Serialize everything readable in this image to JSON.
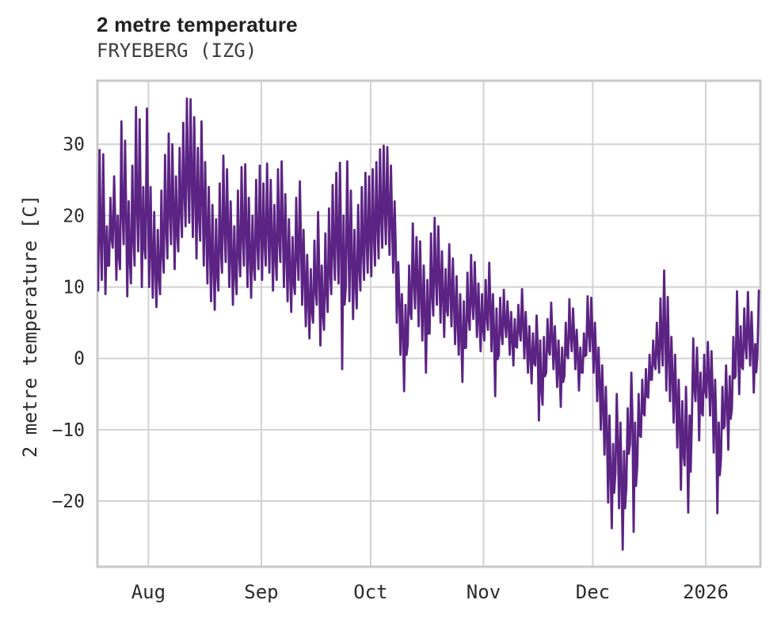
{
  "header": {
    "title": "2 metre temperature",
    "subtitle": "FRYEBERG (IZG)"
  },
  "chart_data": {
    "type": "line",
    "title": "2 metre temperature",
    "station": "FRYEBERG (IZG)",
    "ylabel": "2 metre temperature [C]",
    "xlabel": "",
    "ylim": [
      -29.2,
      38.9
    ],
    "yticks": [
      -20,
      -10,
      0,
      10,
      20,
      30
    ],
    "ytick_labels": [
      "−20",
      "−10",
      "0",
      "10",
      "20",
      "30"
    ],
    "grid": true,
    "legend": "none",
    "line_color": "#5B2383",
    "grid_color": "#d2d2d2",
    "border_color": "#c9c9c9",
    "tick_label_color": "#2b2b2b",
    "x_axis": {
      "unit": "days from start of record (mid-July)",
      "length_days": 182,
      "month_ticks": [
        {
          "label": "Aug",
          "day": 14
        },
        {
          "label": "Sep",
          "day": 45
        },
        {
          "label": "Oct",
          "day": 75
        },
        {
          "label": "Nov",
          "day": 106
        },
        {
          "label": "Dec",
          "day": 136
        },
        {
          "label": "2026",
          "day": 167
        }
      ]
    },
    "series": [
      {
        "name": "2 metre temperature [C]",
        "sampling": "daily minimum / maximum (diurnal cycle), values in degrees C, estimated from plot",
        "daily_min": [
          9.5,
          11,
          9,
          13,
          15.5,
          11,
          12.5,
          16,
          8.7,
          10.5,
          13,
          15,
          10,
          14,
          10,
          8.5,
          7.2,
          9,
          12,
          14,
          16,
          12.5,
          15,
          17,
          18.5,
          19,
          17,
          14,
          16.5,
          13,
          10.5,
          8,
          6.8,
          9.5,
          12,
          13.5,
          10,
          7.5,
          9,
          11.5,
          13,
          10,
          8.5,
          11,
          12.5,
          11,
          13,
          12,
          9.5,
          11,
          13.5,
          10,
          8,
          6.5,
          9,
          11,
          7.5,
          4.5,
          2.8,
          5,
          7.5,
          1.8,
          4,
          6.5,
          9,
          11,
          10.5,
          -1.5,
          10,
          8,
          5.5,
          7,
          9.5,
          11,
          12,
          11.5,
          13,
          14,
          15.5,
          16,
          14.5,
          12,
          5,
          0.5,
          -4.6,
          2,
          5.5,
          7,
          4.5,
          2.5,
          -2,
          3.5,
          6,
          7.5,
          5,
          3,
          6,
          4.5,
          2,
          0.5,
          -3.3,
          1.5,
          4,
          5.5,
          3,
          1,
          2.5,
          4,
          1,
          -5.3,
          0.5,
          2,
          3,
          0.5,
          -1,
          1.5,
          2.5,
          0,
          -2,
          -3.5,
          -1,
          -8.7,
          -6.5,
          -2,
          0.5,
          -1.5,
          -4,
          -6.8,
          -2.5,
          0,
          1,
          -1.5,
          -4.5,
          -2,
          0.5,
          1,
          -2,
          -6,
          -10,
          -13.5,
          -20.2,
          -23.8,
          -16,
          -21,
          -26.8,
          -18,
          -12,
          -24.3,
          -15,
          -11,
          -8,
          -5.5,
          -3,
          -1.5,
          -2,
          -1,
          -4.5,
          -6,
          -9,
          -12.5,
          -18.4,
          -15,
          -21.6,
          -9,
          -6,
          -11.5,
          -8,
          -5.5,
          -8,
          -13.2,
          -21.7,
          -14,
          -9.5,
          -12.8,
          -7,
          -2.5,
          -5,
          -1.5,
          0,
          -1,
          -4.8,
          0.5
        ],
        "daily_max": [
          29.2,
          28.6,
          18.5,
          22.5,
          25.5,
          20,
          33.2,
          30.5,
          22,
          27,
          35.2,
          33.5,
          24,
          35,
          24,
          20.5,
          18,
          23.5,
          28.5,
          31.5,
          30,
          25.5,
          29.5,
          33,
          36.4,
          36.3,
          33.8,
          29.5,
          33.2,
          27.5,
          24,
          21.5,
          19.5,
          24.5,
          28.4,
          26.5,
          22,
          18.5,
          23.5,
          26.8,
          27.2,
          22.5,
          20,
          25,
          27,
          24.5,
          27.3,
          25,
          21.5,
          26.5,
          27.6,
          23,
          19.5,
          17,
          22.5,
          24.8,
          18,
          14.5,
          12.5,
          16.5,
          20.5,
          13,
          17.5,
          21,
          24.3,
          26,
          27.4,
          20,
          27.6,
          23.5,
          18,
          21.5,
          24,
          26,
          25.5,
          26.5,
          27.5,
          29.3,
          29.8,
          29.6,
          27,
          22,
          13.5,
          9,
          7.5,
          13,
          18.9,
          17,
          16.4,
          13,
          11,
          17.5,
          19.7,
          18.5,
          15,
          12.5,
          16,
          14,
          11.5,
          9,
          8,
          12,
          14.5,
          13.5,
          10.5,
          9,
          11,
          13.4,
          9,
          7,
          8.5,
          9.6,
          8,
          6.5,
          5.5,
          7.5,
          9.7,
          6.5,
          4.5,
          3.5,
          6,
          2.5,
          3,
          5.5,
          7.8,
          4.5,
          2.5,
          1.5,
          5,
          8.3,
          7,
          4,
          1.5,
          3.5,
          8.7,
          8.5,
          5,
          1.5,
          -1,
          -4,
          -8,
          -12,
          -5,
          -9,
          -13,
          -7,
          -2,
          -9,
          -5,
          -3,
          -1.5,
          0.5,
          2.5,
          5,
          8.4,
          12.3,
          8.6,
          3,
          0.5,
          -3,
          -6,
          -4,
          -8,
          2.8,
          1.5,
          -2,
          0.5,
          2.3,
          1,
          -3,
          -9,
          -4,
          -1,
          -2.5,
          3,
          9.4,
          4.5,
          7,
          9.3,
          6.5,
          2,
          9.5
        ]
      }
    ]
  }
}
